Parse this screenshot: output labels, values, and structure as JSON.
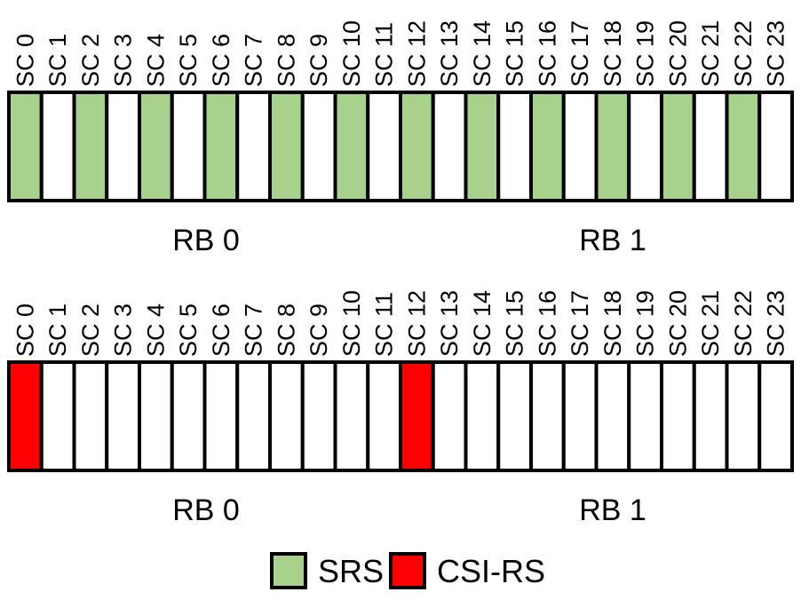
{
  "colors": {
    "srs": "#a9d18e",
    "csi_rs": "#ff0000",
    "empty": "#ffffff",
    "stroke": "#000000"
  },
  "grids": [
    {
      "subcarriers": [
        "SC 0",
        "SC 1",
        "SC 2",
        "SC 3",
        "SC 4",
        "SC 5",
        "SC 6",
        "SC 7",
        "SC 8",
        "SC 9",
        "SC 10",
        "SC 11",
        "SC 12",
        "SC 13",
        "SC 14",
        "SC 15",
        "SC 16",
        "SC 17",
        "SC 18",
        "SC 19",
        "SC 20",
        "SC 21",
        "SC 22",
        "SC 23"
      ],
      "fill": [
        "srs",
        "empty",
        "srs",
        "empty",
        "srs",
        "empty",
        "srs",
        "empty",
        "srs",
        "empty",
        "srs",
        "empty",
        "srs",
        "empty",
        "srs",
        "empty",
        "srs",
        "empty",
        "srs",
        "empty",
        "srs",
        "empty",
        "srs",
        "empty"
      ],
      "rb_labels": [
        "RB 0",
        "RB 1"
      ]
    },
    {
      "subcarriers": [
        "SC 0",
        "SC 1",
        "SC 2",
        "SC 3",
        "SC 4",
        "SC 5",
        "SC 6",
        "SC 7",
        "SC 8",
        "SC 9",
        "SC 10",
        "SC 11",
        "SC 12",
        "SC 13",
        "SC 14",
        "SC 15",
        "SC 16",
        "SC 17",
        "SC 18",
        "SC 19",
        "SC 20",
        "SC 21",
        "SC 22",
        "SC 23"
      ],
      "fill": [
        "csi_rs",
        "empty",
        "empty",
        "empty",
        "empty",
        "empty",
        "empty",
        "empty",
        "empty",
        "empty",
        "empty",
        "empty",
        "csi_rs",
        "empty",
        "empty",
        "empty",
        "empty",
        "empty",
        "empty",
        "empty",
        "empty",
        "empty",
        "empty",
        "empty"
      ],
      "rb_labels": [
        "RB 0",
        "RB 1"
      ]
    }
  ],
  "legend": [
    {
      "key": "srs",
      "label": "SRS"
    },
    {
      "key": "csi_rs",
      "label": "CSI-RS"
    }
  ]
}
